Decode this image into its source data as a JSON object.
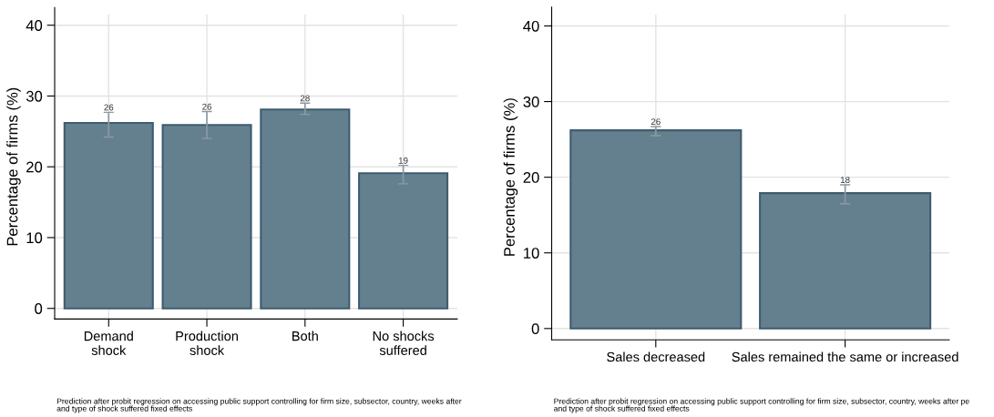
{
  "chart_data": [
    {
      "type": "bar",
      "ylabel": "Percentage of firms (%)",
      "categories": [
        "Demand\nshock",
        "Production\nshock",
        "Both",
        "No shocks\nsuffered"
      ],
      "values": [
        26.2,
        25.9,
        28.1,
        19.1
      ],
      "value_labels": [
        "26",
        "26",
        "28",
        "19"
      ],
      "errors": [
        [
          24.2,
          27.7
        ],
        [
          24.0,
          27.8
        ],
        [
          27.4,
          29.0
        ],
        [
          17.6,
          20.2
        ]
      ],
      "color": "#64808f",
      "ylim": [
        -1.5,
        41.5
      ],
      "yticks": [
        0,
        10,
        20,
        30,
        40
      ],
      "grid": true,
      "legend": false,
      "annotations": [
        "Prediction after probit regression on accessing public support controlling for firm size, subsector, country, weeks after\nand type of shock suffered fixed effects"
      ]
    },
    {
      "type": "bar",
      "ylabel": "Percentage of firms (%)",
      "categories": [
        "Sales decreased",
        "Sales remained the same or increased"
      ],
      "values": [
        26.2,
        17.9
      ],
      "value_labels": [
        "26",
        "18"
      ],
      "errors": [
        [
          25.5,
          26.7
        ],
        [
          16.5,
          19.0
        ]
      ],
      "color": "#64808f",
      "ylim": [
        -1.5,
        41.5
      ],
      "yticks": [
        0,
        10,
        20,
        30,
        40
      ],
      "grid": true,
      "legend": false,
      "annotations": [
        "Prediction after probit regression on accessing public support controlling for firm size, subsector, country, weeks after pe\nand type of shock suffered fixed effects"
      ]
    }
  ]
}
